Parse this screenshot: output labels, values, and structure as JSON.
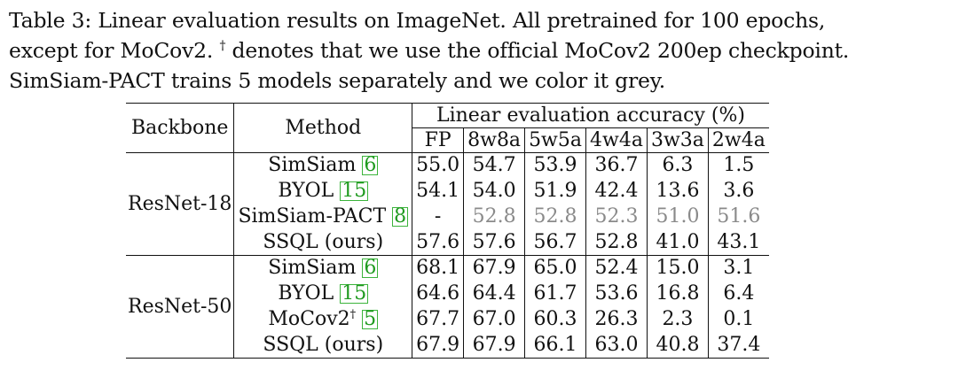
{
  "caption": {
    "line1": "Table 3: Linear evaluation results on ImageNet. All pretrained for 100 epochs,",
    "line2_a": "except for MoCov2. ",
    "line2_dagger": "†",
    "line2_b": " denotes that we use the official MoCov2 200ep checkpoint.",
    "line3": "SimSiam-PACT trains 5 models separately and we color it grey."
  },
  "table": {
    "headers": {
      "backbone": "Backbone",
      "method": "Method",
      "group": "Linear evaluation accuracy (%)",
      "columns": [
        "FP",
        "8w8a",
        "5w5a",
        "4w4a",
        "3w3a",
        "2w4a"
      ]
    },
    "groups": [
      {
        "backbone": "ResNet-18",
        "rows": [
          {
            "method": "SimSiam",
            "cite": "6",
            "dagger": "",
            "values": [
              "55.0",
              "54.7",
              "53.9",
              "36.7",
              "6.3",
              "1.5"
            ],
            "bold": [
              false,
              false,
              false,
              false,
              false,
              false
            ],
            "grey": false
          },
          {
            "method": "BYOL",
            "cite": "15",
            "dagger": "",
            "values": [
              "54.1",
              "54.0",
              "51.9",
              "42.4",
              "13.6",
              "3.6"
            ],
            "bold": [
              false,
              false,
              false,
              false,
              false,
              false
            ],
            "grey": false
          },
          {
            "method": "SimSiam-PACT",
            "cite": "8",
            "dagger": "",
            "values": [
              "-",
              "52.8",
              "52.8",
              "52.3",
              "51.0",
              "51.6"
            ],
            "bold": [
              false,
              false,
              false,
              false,
              false,
              false
            ],
            "grey": true
          },
          {
            "method": "SSQL (ours)",
            "cite": "",
            "dagger": "",
            "values": [
              "57.6",
              "57.6",
              "56.7",
              "52.8",
              "41.0",
              "43.1"
            ],
            "bold": [
              true,
              true,
              true,
              true,
              true,
              true
            ],
            "grey": false
          }
        ]
      },
      {
        "backbone": "ResNet-50",
        "rows": [
          {
            "method": "SimSiam",
            "cite": "6",
            "dagger": "",
            "values": [
              "68.1",
              "67.9",
              "65.0",
              "52.4",
              "15.0",
              "3.1"
            ],
            "bold": [
              true,
              true,
              false,
              false,
              false,
              false
            ],
            "grey": false
          },
          {
            "method": "BYOL",
            "cite": "15",
            "dagger": "",
            "values": [
              "64.6",
              "64.4",
              "61.7",
              "53.6",
              "16.8",
              "6.4"
            ],
            "bold": [
              false,
              false,
              false,
              false,
              false,
              false
            ],
            "grey": false
          },
          {
            "method": "MoCov2",
            "cite": "5",
            "dagger": "†",
            "values": [
              "67.7",
              "67.0",
              "60.3",
              "26.3",
              "2.3",
              "0.1"
            ],
            "bold": [
              false,
              false,
              false,
              false,
              false,
              false
            ],
            "grey": false
          },
          {
            "method": "SSQL (ours)",
            "cite": "",
            "dagger": "",
            "values": [
              "67.9",
              "67.9",
              "66.1",
              "63.0",
              "40.8",
              "37.4"
            ],
            "bold": [
              false,
              true,
              true,
              true,
              true,
              true
            ],
            "grey": false
          }
        ]
      }
    ]
  }
}
